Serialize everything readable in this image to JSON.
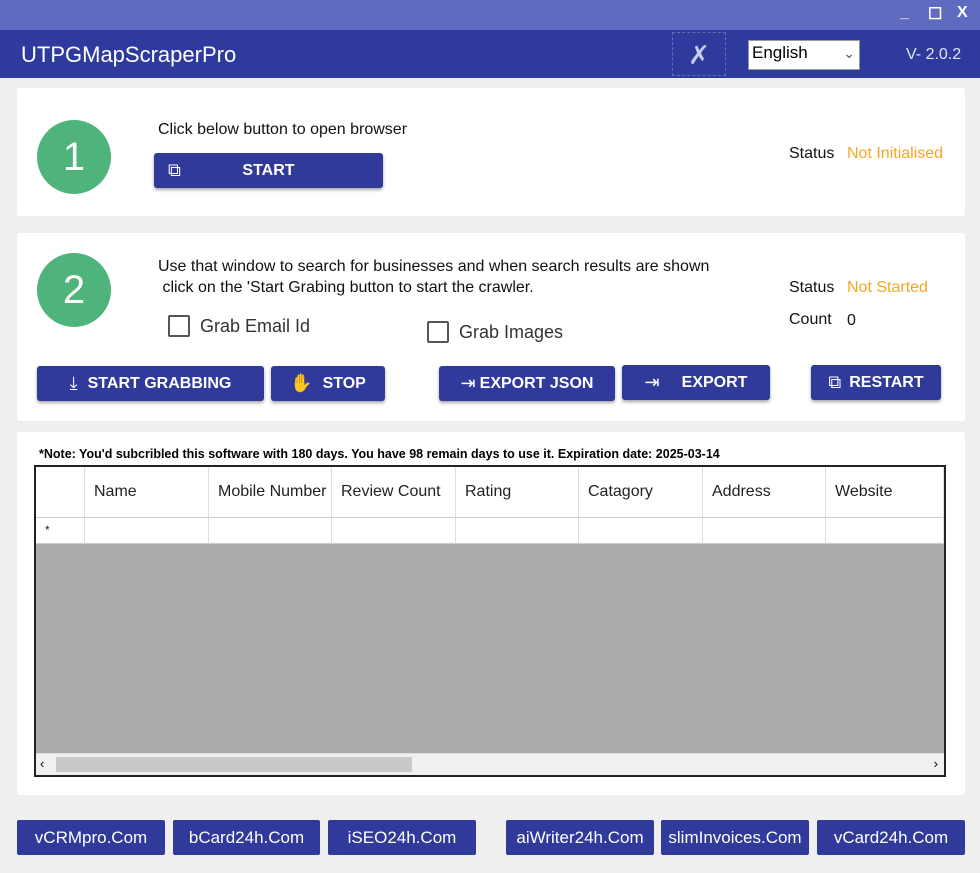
{
  "window": {
    "minimize": "_",
    "maximize": "☐",
    "close": "X"
  },
  "header": {
    "title": "UTPGMapScraperPro",
    "language": "English",
    "version": "V- 2.0.2"
  },
  "step1": {
    "number": "1",
    "instruction": "Click below button to open browser",
    "start_label": "START",
    "status_label": "Status",
    "status_value": "Not Initialised"
  },
  "step2": {
    "number": "2",
    "instruction_line1": "Use that window to search for businesses and when search results are shown",
    "instruction_line2": " click on the 'Start Grabing button to start the crawler.",
    "grab_email": "Grab Email Id",
    "grab_images": "Grab Images",
    "status_label": "Status",
    "status_value": "Not Started",
    "count_label": "Count",
    "count_value": "0"
  },
  "actions": {
    "start_grabbing": "START GRABBING",
    "stop": "STOP",
    "export_json": "EXPORT JSON",
    "export": "EXPORT",
    "restart": "RESTART"
  },
  "note": "*Note: You'd subcribled this software with 180 days. You have 98 remain days to use it. Expiration date: 2025-03-14",
  "table": {
    "columns": [
      "Name",
      "Mobile Number",
      "Review Count",
      "Rating",
      "Catagory",
      "Address",
      "Website"
    ],
    "new_row_marker": "*"
  },
  "links": [
    "vCRMpro.Com",
    "bCard24h.Com",
    "iSEO24h.Com",
    "aiWriter24h.Com",
    "slimInvoices.Com",
    "vCard24h.Com"
  ],
  "colors": {
    "accent": "#2f3a9a",
    "status": "#f5a623",
    "step_circle": "#4fb37c"
  }
}
